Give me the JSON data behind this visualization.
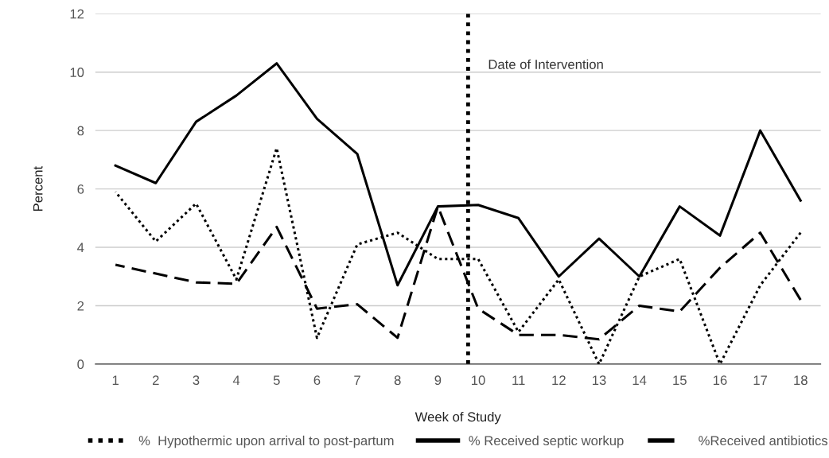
{
  "chart_data": {
    "type": "line",
    "xlabel": "Week of Study",
    "ylabel": "Percent",
    "x": [
      1,
      2,
      3,
      4,
      5,
      6,
      7,
      8,
      9,
      10,
      11,
      12,
      13,
      14,
      15,
      16,
      17,
      18
    ],
    "xlim": [
      0.5,
      18.5
    ],
    "xticks": [
      1,
      2,
      3,
      4,
      5,
      6,
      7,
      8,
      9,
      10,
      11,
      12,
      13,
      14,
      15,
      16,
      17,
      18
    ],
    "ylim": [
      0,
      12
    ],
    "yticks": [
      0,
      2,
      4,
      6,
      8,
      10,
      12
    ],
    "grid": "y",
    "legend": "bottom",
    "marker": "none",
    "series": [
      {
        "name": "%  Hypothermic upon arrival to post-partum",
        "color": "#000000",
        "line_style": "dotted",
        "values": [
          5.9,
          4.2,
          5.5,
          2.9,
          7.4,
          0.9,
          4.1,
          4.5,
          3.6,
          3.6,
          1.1,
          2.9,
          0.0,
          3.0,
          3.6,
          0.0,
          2.7,
          4.5
        ]
      },
      {
        "name": "% Received septic workup",
        "color": "#000000",
        "line_style": "solid",
        "values": [
          6.8,
          6.2,
          8.3,
          9.2,
          10.3,
          8.4,
          7.2,
          2.7,
          5.4,
          5.45,
          5.0,
          3.0,
          4.3,
          3.0,
          5.4,
          4.4,
          8.0,
          5.6
        ]
      },
      {
        "name": "%Received antibiotics",
        "color": "#000000",
        "line_style": "dashed",
        "values": [
          3.4,
          3.1,
          2.8,
          2.75,
          4.7,
          1.9,
          2.05,
          0.9,
          5.4,
          1.9,
          1.0,
          1.0,
          0.85,
          2.0,
          1.8,
          3.3,
          4.5,
          2.2
        ]
      }
    ],
    "ref_lines": [
      {
        "axis": "x",
        "value": 9.75,
        "label": "Date of Intervention",
        "color": "#000000",
        "line_style": "dotted"
      }
    ]
  }
}
